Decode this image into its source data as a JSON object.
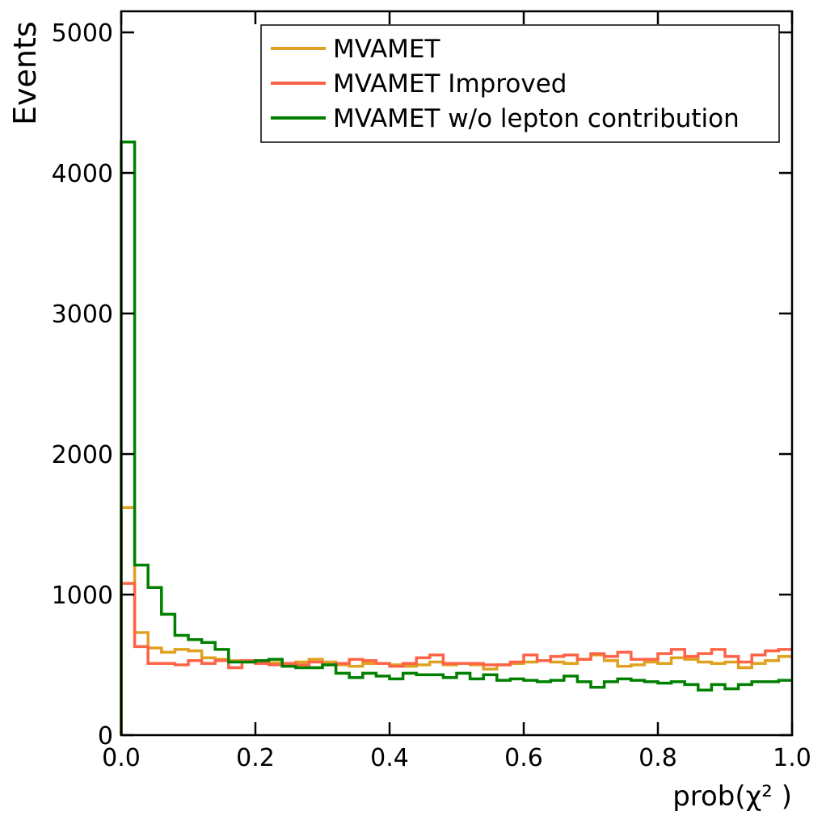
{
  "chart_data": {
    "type": "line",
    "step": true,
    "xlabel": "prob(χ² )",
    "ylabel": "Events",
    "xlim": [
      0.0,
      1.0
    ],
    "ylim": [
      0,
      5150
    ],
    "legend_position": "top-right",
    "grid": false,
    "x_ticks": [
      "0.0",
      "0.2",
      "0.4",
      "0.6",
      "0.8",
      "1.0"
    ],
    "y_ticks": [
      "0",
      "1000",
      "2000",
      "3000",
      "4000",
      "5000"
    ],
    "bin_edges": [
      0.0,
      0.02,
      0.04,
      0.06,
      0.08,
      0.1,
      0.12,
      0.14,
      0.16,
      0.18,
      0.2,
      0.22,
      0.24,
      0.26,
      0.28,
      0.3,
      0.32,
      0.34,
      0.36,
      0.38,
      0.4,
      0.42,
      0.44,
      0.46,
      0.48,
      0.5,
      0.52,
      0.54,
      0.56,
      0.58,
      0.6,
      0.62,
      0.64,
      0.66,
      0.68,
      0.7,
      0.72,
      0.74,
      0.76,
      0.78,
      0.8,
      0.82,
      0.84,
      0.86,
      0.88,
      0.9,
      0.92,
      0.94,
      0.96,
      0.98,
      1.0
    ],
    "series": [
      {
        "name": "MVAMET",
        "color": "#e0a020",
        "values": [
          1620,
          730,
          620,
          590,
          610,
          600,
          550,
          540,
          530,
          520,
          520,
          515,
          510,
          520,
          540,
          520,
          500,
          490,
          510,
          510,
          500,
          490,
          500,
          520,
          500,
          510,
          500,
          470,
          500,
          510,
          520,
          530,
          520,
          510,
          540,
          570,
          530,
          490,
          500,
          520,
          510,
          550,
          540,
          520,
          510,
          520,
          480,
          510,
          530,
          560
        ]
      },
      {
        "name": "MVAMET Improved",
        "color": "#ff6347",
        "values": [
          1080,
          630,
          510,
          510,
          500,
          530,
          510,
          530,
          480,
          530,
          510,
          500,
          510,
          500,
          520,
          500,
          510,
          540,
          530,
          510,
          490,
          510,
          550,
          570,
          510,
          510,
          510,
          500,
          500,
          520,
          570,
          530,
          560,
          570,
          540,
          580,
          560,
          590,
          540,
          540,
          580,
          610,
          560,
          580,
          610,
          560,
          520,
          570,
          600,
          610
        ]
      },
      {
        "name": "MVAMET w/o lepton contribution",
        "color": "#008000",
        "values": [
          4220,
          1210,
          1050,
          860,
          710,
          680,
          660,
          610,
          520,
          520,
          530,
          540,
          490,
          480,
          480,
          500,
          440,
          410,
          440,
          420,
          400,
          440,
          430,
          430,
          410,
          440,
          400,
          430,
          390,
          400,
          390,
          380,
          390,
          420,
          380,
          340,
          380,
          400,
          390,
          380,
          370,
          380,
          360,
          320,
          360,
          330,
          360,
          380,
          380,
          390
        ]
      }
    ]
  }
}
